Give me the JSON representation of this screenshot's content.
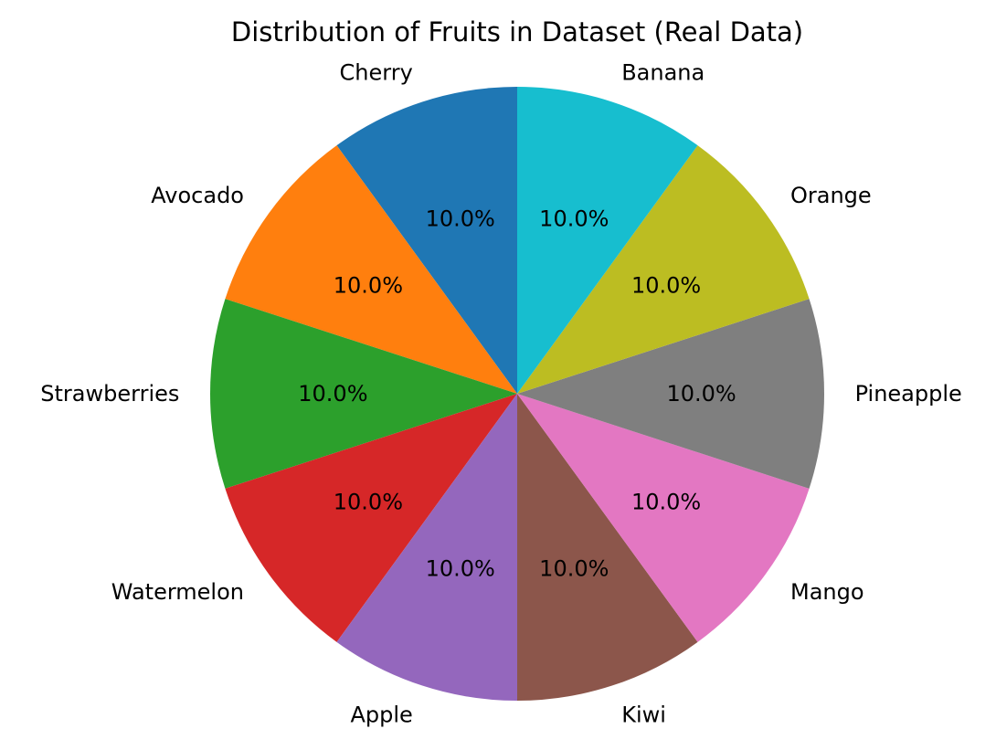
{
  "chart_data": {
    "type": "pie",
    "title": "Distribution of Fruits in Dataset (Real Data)",
    "start_angle_deg": 90,
    "direction": "counterclockwise",
    "slices": [
      {
        "label": "Cherry",
        "value": 10.0,
        "percent_label": "10.0%",
        "color": "#1f77b4"
      },
      {
        "label": "Avocado",
        "value": 10.0,
        "percent_label": "10.0%",
        "color": "#ff7f0e"
      },
      {
        "label": "Strawberries",
        "value": 10.0,
        "percent_label": "10.0%",
        "color": "#2ca02c"
      },
      {
        "label": "Watermelon",
        "value": 10.0,
        "percent_label": "10.0%",
        "color": "#d62728"
      },
      {
        "label": "Apple",
        "value": 10.0,
        "percent_label": "10.0%",
        "color": "#9467bd"
      },
      {
        "label": "Kiwi",
        "value": 10.0,
        "percent_label": "10.0%",
        "color": "#8c564b"
      },
      {
        "label": "Mango",
        "value": 10.0,
        "percent_label": "10.0%",
        "color": "#e377c2"
      },
      {
        "label": "Pineapple",
        "value": 10.0,
        "percent_label": "10.0%",
        "color": "#7f7f7f"
      },
      {
        "label": "Orange",
        "value": 10.0,
        "percent_label": "10.0%",
        "color": "#bcbd22"
      },
      {
        "label": "Banana",
        "value": 10.0,
        "percent_label": "10.0%",
        "color": "#17becf"
      }
    ]
  }
}
